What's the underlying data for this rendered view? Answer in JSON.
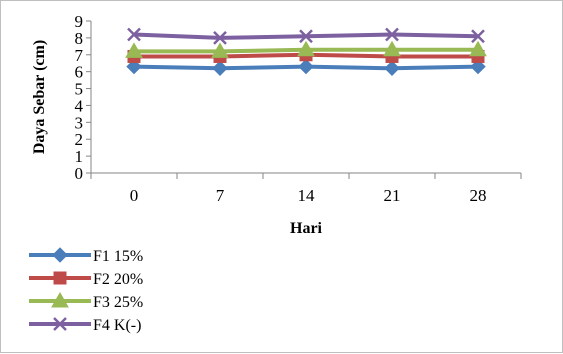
{
  "chart_data": {
    "type": "line",
    "categories": [
      "0",
      "7",
      "14",
      "21",
      "28"
    ],
    "xlabel": "Hari",
    "ylabel": "Daya Sebar (cm)",
    "ylim": [
      0,
      9
    ],
    "yticks": [
      0,
      1,
      2,
      3,
      4,
      5,
      6,
      7,
      8,
      9
    ],
    "grid": false,
    "legend_position": "bottom-left",
    "series": [
      {
        "name": "F1 15%",
        "values": [
          6.3,
          6.2,
          6.3,
          6.2,
          6.3
        ],
        "color": "#4a7ebb",
        "marker": "diamond"
      },
      {
        "name": "F2 20%",
        "values": [
          6.9,
          6.9,
          7.0,
          6.9,
          6.9
        ],
        "color": "#be4b48",
        "marker": "square"
      },
      {
        "name": "F3 25%",
        "values": [
          7.2,
          7.2,
          7.3,
          7.3,
          7.3
        ],
        "color": "#98b954",
        "marker": "triangle"
      },
      {
        "name": "F4 K(-)",
        "values": [
          8.2,
          8.0,
          8.1,
          8.2,
          8.1
        ],
        "color": "#7d60a0",
        "marker": "x"
      }
    ]
  }
}
